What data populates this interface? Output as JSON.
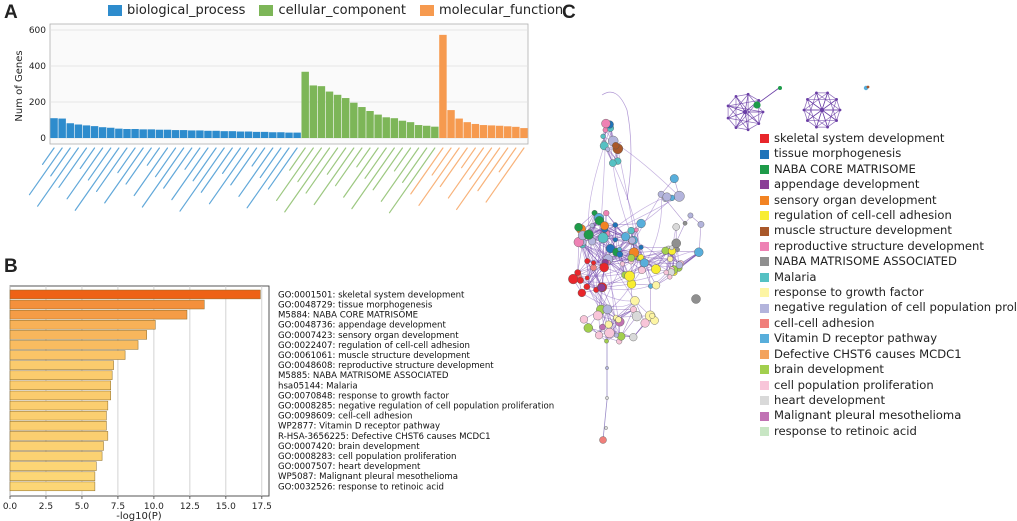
{
  "panels": {
    "a": "A",
    "b": "B",
    "c": "C"
  },
  "chart_data": [
    {
      "type": "bar",
      "panel": "A",
      "ylabel": "Num of Genes",
      "ylim": [
        0,
        600
      ],
      "yticks": [
        "0",
        "200",
        "400",
        "600"
      ],
      "legend": [
        {
          "name": "biological_process",
          "color": "#2e8ccd"
        },
        {
          "name": "cellular_component",
          "color": "#7db658"
        },
        {
          "name": "molecular_function",
          "color": "#f69a4f"
        }
      ],
      "groups": [
        {
          "name": "biological_process",
          "color": "#2e8ccd",
          "values": [
            110,
            108,
            82,
            75,
            70,
            66,
            60,
            57,
            52,
            50,
            50,
            48,
            48,
            46,
            46,
            44,
            44,
            42,
            42,
            40,
            40,
            38,
            38,
            36,
            36,
            34,
            34,
            32,
            32,
            30,
            30
          ]
        },
        {
          "name": "cellular_component",
          "color": "#7db658",
          "values": [
            368,
            292,
            288,
            258,
            240,
            222,
            196,
            172,
            150,
            130,
            115,
            110,
            96,
            88,
            72,
            68,
            63
          ]
        },
        {
          "name": "molecular_function",
          "color": "#f69a4f",
          "values": [
            573,
            155,
            108,
            88,
            78,
            72,
            70,
            68,
            65,
            62,
            55
          ]
        }
      ]
    },
    {
      "type": "bar",
      "panel": "B",
      "orientation": "horizontal",
      "xlabel": "-log10(P)",
      "xlim": [
        0,
        18
      ],
      "xticks": [
        "0.0",
        "2.5",
        "5.0",
        "7.5",
        "10.0",
        "12.5",
        "15.0",
        "17.5"
      ],
      "categories": [
        "GO:0001501: skeletal system development",
        "GO:0048729: tissue morphogenesis",
        "M5884: NABA CORE MATRISOME",
        "GO:0048736: appendage development",
        "GO:0007423: sensory organ development",
        "GO:0022407: regulation of cell-cell adhesion",
        "GO:0061061: muscle structure development",
        "GO:0048608: reproductive structure development",
        "M5885: NABA MATRISOME ASSOCIATED",
        "hsa05144: Malaria",
        "GO:0070848: response to growth factor",
        "GO:0008285: negative regulation of cell population proliferation",
        "GO:0098609: cell-cell adhesion",
        "WP2877: Vitamin D receptor pathway",
        "R-HSA-3656225: Defective CHST6 causes MCDC1",
        "GO:0007420: brain development",
        "GO:0008283: cell population proliferation",
        "GO:0007507: heart development",
        "WP5087: Malignant pleural mesothelioma",
        "GO:0032526: response to retinoic acid"
      ],
      "values": [
        17.4,
        13.5,
        12.3,
        10.1,
        9.5,
        8.9,
        8.0,
        7.2,
        7.1,
        7.0,
        7.0,
        6.8,
        6.7,
        6.7,
        6.8,
        6.5,
        6.4,
        6.0,
        5.9,
        5.9
      ]
    }
  ],
  "network_legend": [
    {
      "label": "skeletal system development",
      "color": "#e8262b"
    },
    {
      "label": "tissue morphogenesis",
      "color": "#1f74b9"
    },
    {
      "label": "NABA CORE MATRISOME",
      "color": "#1e9b49"
    },
    {
      "label": "appendage development",
      "color": "#8b3f97"
    },
    {
      "label": "sensory organ development",
      "color": "#f28323"
    },
    {
      "label": "regulation of cell-cell adhesion",
      "color": "#f8ed31"
    },
    {
      "label": "muscle structure development",
      "color": "#a9582a"
    },
    {
      "label": "reproductive structure development",
      "color": "#ee82b4"
    },
    {
      "label": "NABA MATRISOME ASSOCIATED",
      "color": "#8f8f8f"
    },
    {
      "label": "Malaria",
      "color": "#55c1c3"
    },
    {
      "label": "response to growth factor",
      "color": "#fdf5a4"
    },
    {
      "label": "negative regulation of cell population proliferation",
      "color": "#b3b4dc"
    },
    {
      "label": "cell-cell adhesion",
      "color": "#f07f7b"
    },
    {
      "label": "Vitamin D receptor pathway",
      "color": "#58aedb"
    },
    {
      "label": "Defective CHST6 causes MCDC1",
      "color": "#f3a35d"
    },
    {
      "label": "brain development",
      "color": "#a2cf4e"
    },
    {
      "label": "cell population proliferation",
      "color": "#f8c5d9"
    },
    {
      "label": "heart development",
      "color": "#d9d9d9"
    },
    {
      "label": "Malignant pleural mesothelioma",
      "color": "#c172b4"
    },
    {
      "label": "response to retinoic acid",
      "color": "#c8e6c4"
    }
  ]
}
